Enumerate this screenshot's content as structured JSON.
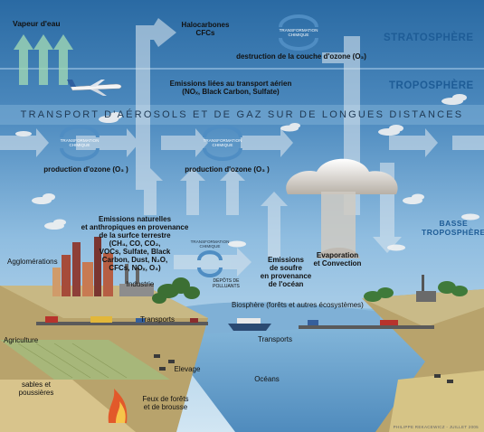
{
  "layers": {
    "stratosphere": "STRATOSPHÈRE",
    "troposphere": "TROPOSPHÈRE",
    "basse_troposphere": "BASSE\nTROPOSPHÈRE"
  },
  "banner": "TRANSPORT D'AÉROSOLS ET DE GAZ SUR DE LONGUES DISTANCES",
  "labels": {
    "vapeur": "Vapeur d'eau",
    "halocarbones": "Halocarbones\nCFCs",
    "destruction": "destruction de la couche d'ozone (O₃)",
    "aviation": "Emissions liées au transport aérien\n(NOₓ, Black Carbon, Sulfate)",
    "ozone1": "production d'ozone (O₃ )",
    "ozone2": "production d'ozone (O₃ )",
    "emissions_nat": "Emissions naturelles\net anthropiques en provenance\nde la surfce terrestre\n(CH₄, CO, CO₂,\nVOCs, Sulfate, Black\nCarbon, Dust, N₂O,\nCFCs, NOₓ, O₃)",
    "soufre": "Emissions\nde soufre\nen provenance\nde l'océan",
    "evaporation": "Evaporation\net Convection",
    "agglomerations": "Agglomérations",
    "industrie": "Industrie",
    "depots": "DÉPÔTS DE\nPOLLUANTS",
    "biosphere": "Biosphère (forêts et autres écosystèmes)",
    "transports_left": "Transports",
    "transports_right": "Transports",
    "agriculture": "Agriculture",
    "elevage": "Elevage",
    "oceans": "Océans",
    "sables": "sables et\npoussières",
    "feux": "Feux de forêts\net de brousse"
  },
  "transformation": {
    "top": "TRANSFORMATION\nCHIMIQUE",
    "left": "TRANSFORMATION\nCHIMIQUE",
    "mid": "TRANSFORMATION\nCHIMIQUE",
    "surface": "TRANSFORMATION\nCHIMIQUE"
  },
  "credit": "PHILIPPE REKACEWICZ - JUILLET 2005",
  "colors": {
    "sky_top": "#2e6fa8",
    "sky_low": "#a9cde8",
    "layer_text": "#1e5c96",
    "arrow": "#c9d6e0",
    "ocean": "#6fa7cf",
    "land": "#c9b47e"
  }
}
